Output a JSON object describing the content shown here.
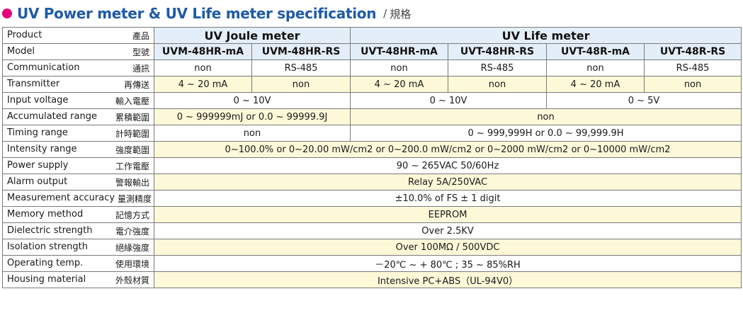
{
  "title": {
    "main": "UV Power meter & UV Life meter specification",
    "separator": "/",
    "sub": "規格",
    "bullet_color": "#e5007f",
    "title_color": "#1e5aa8"
  },
  "colors": {
    "header_blue": "#e4eef8",
    "row_yellow": "#fdf8d8",
    "border": "#7a7a7a"
  },
  "table": {
    "product": {
      "label_en": "Product",
      "label_zh": "產品",
      "joule": "UV Joule meter",
      "life": "UV Life meter"
    },
    "model": {
      "label_en": "Model",
      "label_zh": "型號",
      "values": [
        "UVM-48HR-mA",
        "UVM-48HR-RS",
        "UVT-48HR-mA",
        "UVT-48HR-RS",
        "UVT-48R-mA",
        "UVT-48R-RS"
      ]
    },
    "communication": {
      "label_en": "Communication",
      "label_zh": "通訊",
      "values": [
        "non",
        "RS-485",
        "non",
        "RS-485",
        "non",
        "RS-485"
      ]
    },
    "transmitter": {
      "label_en": "Transmitter",
      "label_zh": "再傳送",
      "values": [
        "4 ~ 20 mA",
        "non",
        "4 ~ 20 mA",
        "non",
        "4 ~ 20 mA",
        "non"
      ]
    },
    "input_voltage": {
      "label_en": "Input voltage",
      "label_zh": "輸入電壓",
      "values": [
        "0 ~ 10V",
        "0 ~ 10V",
        "0 ~ 5V"
      ]
    },
    "accumulated_range": {
      "label_en": "Accumulated range",
      "label_zh": "累積範圍",
      "values": [
        "0 ~ 999999mJ or 0.0 ~ 99999.9J",
        "non"
      ]
    },
    "timing_range": {
      "label_en": "Timing range",
      "label_zh": "計時範圍",
      "values": [
        "non",
        "0 ~ 999,999H or 0.0 ~ 99,999.9H"
      ]
    },
    "intensity_range": {
      "label_en": "Intensity range",
      "label_zh": "強度範圍",
      "value": "0~100.0% or 0~20.00 mW/cm2 or 0~200.0 mW/cm2 or 0~2000 mW/cm2 or 0~10000 mW/cm2"
    },
    "power_supply": {
      "label_en": "Power supply",
      "label_zh": "工作電壓",
      "value": "90 ~ 265VAC 50/60Hz"
    },
    "alarm_output": {
      "label_en": "Alarm output",
      "label_zh": "警報輸出",
      "value": "Relay 5A/250VAC"
    },
    "measurement_accuracy": {
      "label_en": "Measurement accuracy",
      "label_zh": "量測精度",
      "value": "±10.0% of FS ± 1 digit"
    },
    "memory_method": {
      "label_en": "Memory method",
      "label_zh": "記憶方式",
      "value": "EEPROM"
    },
    "dielectric_strength": {
      "label_en": "Dielectric strength",
      "label_zh": "電介強度",
      "value": "Over 2.5KV"
    },
    "isolation_strength": {
      "label_en": "Isolation strength",
      "label_zh": "絕緣強度",
      "value": "Over 100MΩ / 500VDC"
    },
    "operating_temp": {
      "label_en": "Operating temp.",
      "label_zh": "使用環境",
      "value": "－20℃ ~ + 80℃ ; 35 ~ 85%RH"
    },
    "housing_material": {
      "label_en": "Housing material",
      "label_zh": "外殼材質",
      "value": "Intensive PC+ABS（UL-94V0）"
    }
  }
}
